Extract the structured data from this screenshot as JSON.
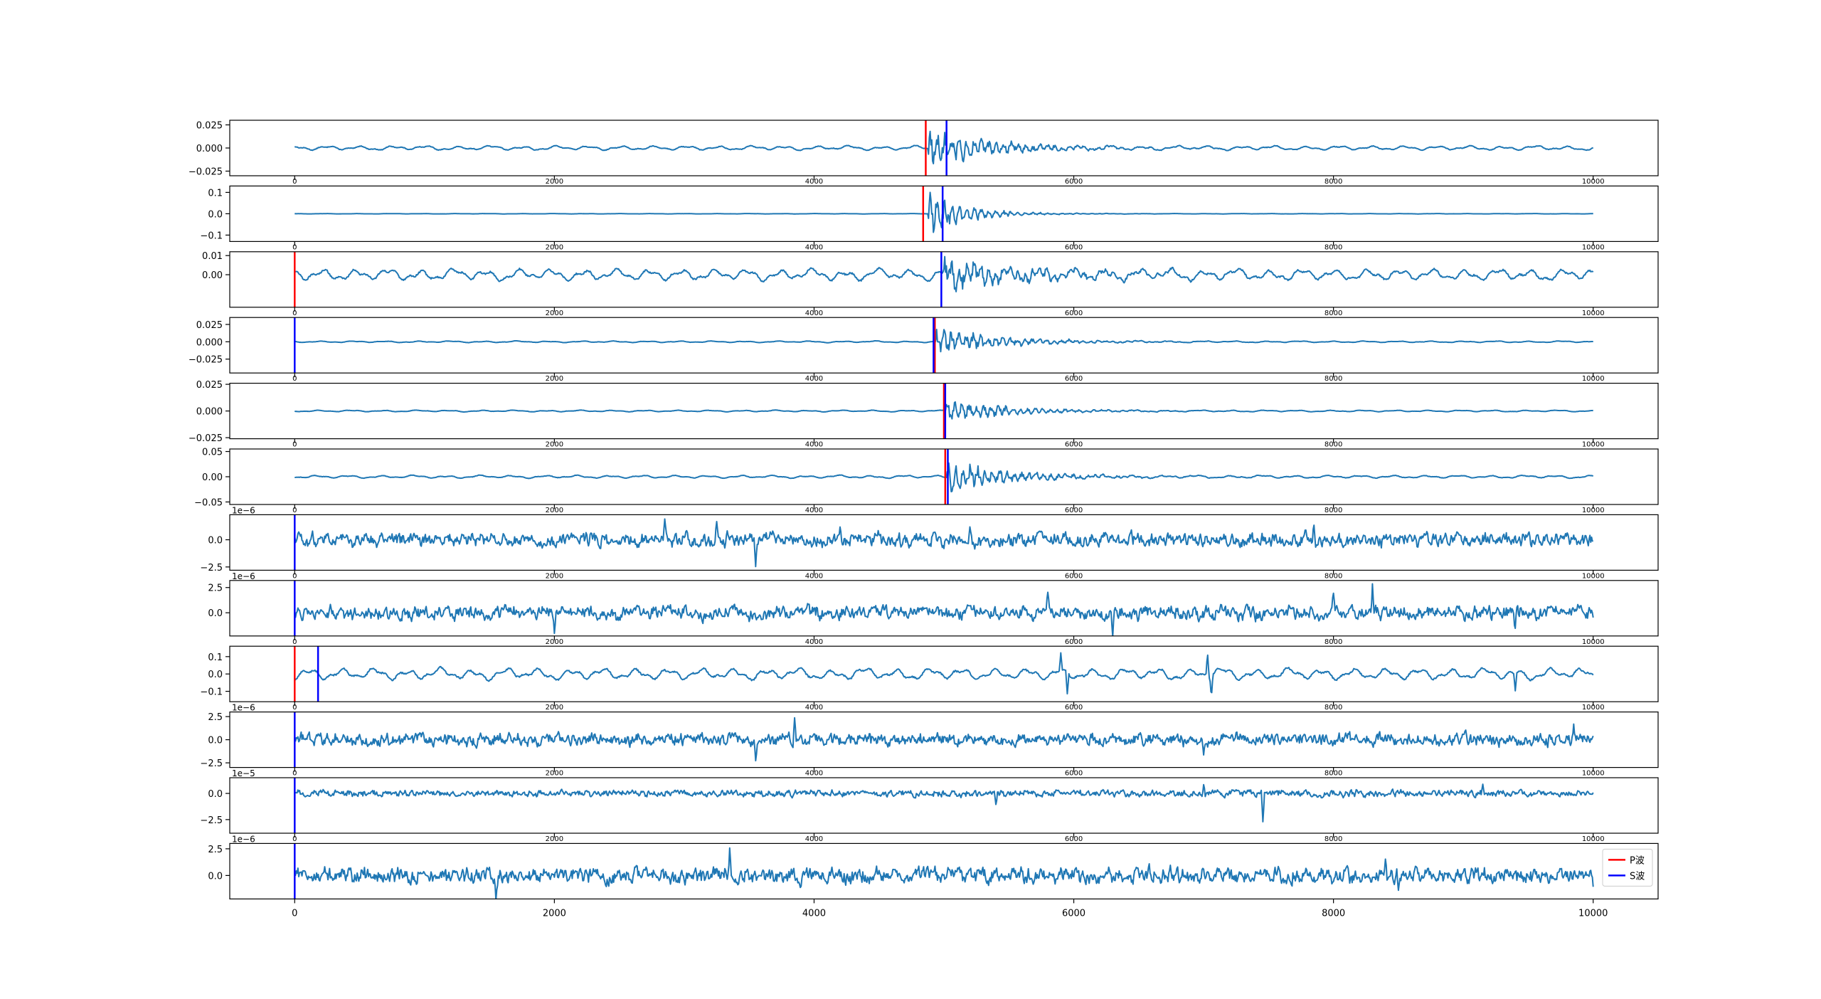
{
  "chart_data": [
    {
      "type": "line",
      "yticks": [
        "0.025",
        "0.000",
        "−0.025"
      ],
      "ytick_values": [
        0.025,
        0.0,
        -0.025
      ],
      "ylim": [
        -0.03,
        0.03
      ],
      "offset_text": "",
      "p_picks": [
        4860
      ],
      "s_picks": [
        5020
      ],
      "series": [
        {
          "amp": 0.0025,
          "noise": "smooth",
          "event_at": 4880,
          "event_amp": 0.022,
          "decay": 500,
          "spikes": []
        }
      ]
    },
    {
      "type": "line",
      "yticks": [
        "0.1",
        "0.0",
        "−0.1"
      ],
      "ytick_values": [
        0.1,
        0.0,
        -0.1
      ],
      "ylim": [
        -0.13,
        0.13
      ],
      "offset_text": "",
      "p_picks": [
        4840
      ],
      "s_picks": [
        4990
      ],
      "series": [
        {
          "amp": 0.001,
          "noise": "smooth",
          "event_at": 4880,
          "event_amp": 0.11,
          "decay": 300,
          "spikes": []
        }
      ]
    },
    {
      "type": "line",
      "yticks": [
        "0.01",
        "0.00"
      ],
      "ytick_values": [
        0.01,
        0.0
      ],
      "ylim": [
        -0.017,
        0.012
      ],
      "offset_text": "",
      "p_picks": [
        0
      ],
      "s_picks": [
        4980
      ],
      "series": [
        {
          "amp": 0.0032,
          "noise": "smooth",
          "event_at": 4990,
          "event_amp": 0.009,
          "decay": 700,
          "spikes": []
        }
      ]
    },
    {
      "type": "line",
      "yticks": [
        "0.025",
        "0.000",
        "−0.025"
      ],
      "ytick_values": [
        0.025,
        0.0,
        -0.025
      ],
      "ylim": [
        -0.045,
        0.035
      ],
      "offset_text": "",
      "p_picks": [
        4930
      ],
      "s_picks": [
        0,
        4920
      ],
      "series": [
        {
          "amp": 0.0012,
          "noise": "smooth",
          "event_at": 4930,
          "event_amp": 0.022,
          "decay": 500,
          "spikes": []
        }
      ]
    },
    {
      "type": "line",
      "yticks": [
        "0.025",
        "0.000",
        "−0.025"
      ],
      "ytick_values": [
        0.025,
        0.0,
        -0.025
      ],
      "ylim": [
        -0.026,
        0.026
      ],
      "offset_text": "",
      "p_picks": [
        5000
      ],
      "s_picks": [
        5010
      ],
      "series": [
        {
          "amp": 0.0008,
          "noise": "smooth",
          "event_at": 5010,
          "event_amp": 0.012,
          "decay": 500,
          "spikes": []
        }
      ]
    },
    {
      "type": "line",
      "yticks": [
        "0.05",
        "0.00",
        "−0.05"
      ],
      "ytick_values": [
        0.05,
        0.0,
        -0.05
      ],
      "ylim": [
        -0.055,
        0.055
      ],
      "offset_text": "",
      "p_picks": [
        5010
      ],
      "s_picks": [
        5030
      ],
      "series": [
        {
          "amp": 0.003,
          "noise": "smooth",
          "event_at": 5020,
          "event_amp": 0.035,
          "decay": 500,
          "spikes": []
        }
      ]
    },
    {
      "type": "line",
      "yticks": [
        "0.0",
        "−2.5"
      ],
      "ytick_values": [
        0.0,
        -2.5
      ],
      "ylim": [
        -2.8,
        2.3
      ],
      "offset_text": "1e−6",
      "p_picks": [
        0
      ],
      "s_picks": [
        0
      ],
      "series": [
        {
          "amp": 0.55,
          "noise": "rough",
          "event_at": null,
          "event_amp": 0,
          "decay": 1,
          "spikes": [
            [
              2850,
              2.2
            ],
            [
              3250,
              1.9
            ],
            [
              3550,
              -2.6
            ],
            [
              4200,
              1.2
            ],
            [
              7850,
              1.6
            ],
            [
              5200,
              1.1
            ]
          ]
        }
      ]
    },
    {
      "type": "line",
      "yticks": [
        "2.5",
        "0.0"
      ],
      "ytick_values": [
        2.5,
        0.0
      ],
      "ylim": [
        -2.3,
        3.2
      ],
      "offset_text": "1e−6",
      "p_picks": [
        0
      ],
      "s_picks": [
        0
      ],
      "series": [
        {
          "amp": 0.6,
          "noise": "rough",
          "event_at": null,
          "event_amp": 0,
          "decay": 1,
          "spikes": [
            [
              2000,
              -1.7
            ],
            [
              6300,
              -1.8
            ],
            [
              8000,
              1.6
            ],
            [
              8300,
              3.0
            ],
            [
              9400,
              -1.5
            ],
            [
              5800,
              1.5
            ]
          ]
        }
      ]
    },
    {
      "type": "line",
      "yticks": [
        "0.1",
        "0.0",
        "−0.1"
      ],
      "ytick_values": [
        0.1,
        0.0,
        -0.1
      ],
      "ylim": [
        -0.16,
        0.16
      ],
      "offset_text": "",
      "p_picks": [
        0
      ],
      "s_picks": [
        180
      ],
      "series": [
        {
          "amp": 0.035,
          "noise": "smooth",
          "event_at": null,
          "event_amp": 0,
          "decay": 1,
          "spikes": [
            [
              5900,
              0.1
            ],
            [
              5950,
              -0.13
            ],
            [
              7030,
              0.14
            ],
            [
              7060,
              -0.12
            ],
            [
              9400,
              -0.1
            ]
          ]
        }
      ]
    },
    {
      "type": "line",
      "yticks": [
        "2.5",
        "0.0",
        "−2.5"
      ],
      "ytick_values": [
        2.5,
        0.0,
        -2.5
      ],
      "ylim": [
        -3.0,
        3.0
      ],
      "offset_text": "1e−6",
      "p_picks": [
        0
      ],
      "s_picks": [
        0
      ],
      "series": [
        {
          "amp": 0.6,
          "noise": "rough",
          "event_at": null,
          "event_amp": 0,
          "decay": 1,
          "spikes": [
            [
              3850,
              2.6
            ],
            [
              3550,
              -2.3
            ],
            [
              7000,
              -1.5
            ],
            [
              9850,
              1.8
            ]
          ]
        }
      ]
    },
    {
      "type": "line",
      "yticks": [
        "0.0",
        "−2.5"
      ],
      "ytick_values": [
        0.0,
        -2.5
      ],
      "ylim": [
        -3.8,
        1.5
      ],
      "offset_text": "1e−5",
      "p_picks": [
        0
      ],
      "s_picks": [
        0
      ],
      "series": [
        {
          "amp": 0.28,
          "noise": "rough",
          "event_at": null,
          "event_amp": 0,
          "decay": 1,
          "spikes": [
            [
              7450,
              1.0
            ],
            [
              7455,
              -3.5
            ],
            [
              7000,
              1.1
            ],
            [
              9150,
              1.0
            ],
            [
              5400,
              -1.0
            ]
          ]
        }
      ]
    },
    {
      "type": "line",
      "yticks": [
        "2.5",
        "0.0"
      ],
      "ytick_values": [
        2.5,
        0.0
      ],
      "ylim": [
        -2.2,
        3.0
      ],
      "offset_text": "1e−6",
      "p_picks": [
        0
      ],
      "s_picks": [
        0
      ],
      "series": [
        {
          "amp": 0.65,
          "noise": "rough",
          "event_at": null,
          "event_amp": 0,
          "decay": 1,
          "spikes": [
            [
              3350,
              2.2
            ],
            [
              8400,
              2.2
            ],
            [
              8500,
              -1.7
            ],
            [
              1550,
              -1.6
            ],
            [
              10000,
              -1.6
            ]
          ]
        }
      ]
    }
  ],
  "x_axis": {
    "xlim": [
      -500,
      10500
    ],
    "ticks": [
      "0",
      "2000",
      "4000",
      "6000",
      "8000",
      "10000"
    ],
    "tick_values": [
      0,
      2000,
      4000,
      6000,
      8000,
      10000
    ]
  },
  "legend": {
    "placement": "lower-right",
    "entries": [
      {
        "name": "P波",
        "color": "#ff0000"
      },
      {
        "name": "S波",
        "color": "#0000ff"
      }
    ]
  },
  "colors": {
    "trace": "#1f77b4",
    "p_pick": "#ff0000",
    "s_pick": "#0000ff"
  }
}
